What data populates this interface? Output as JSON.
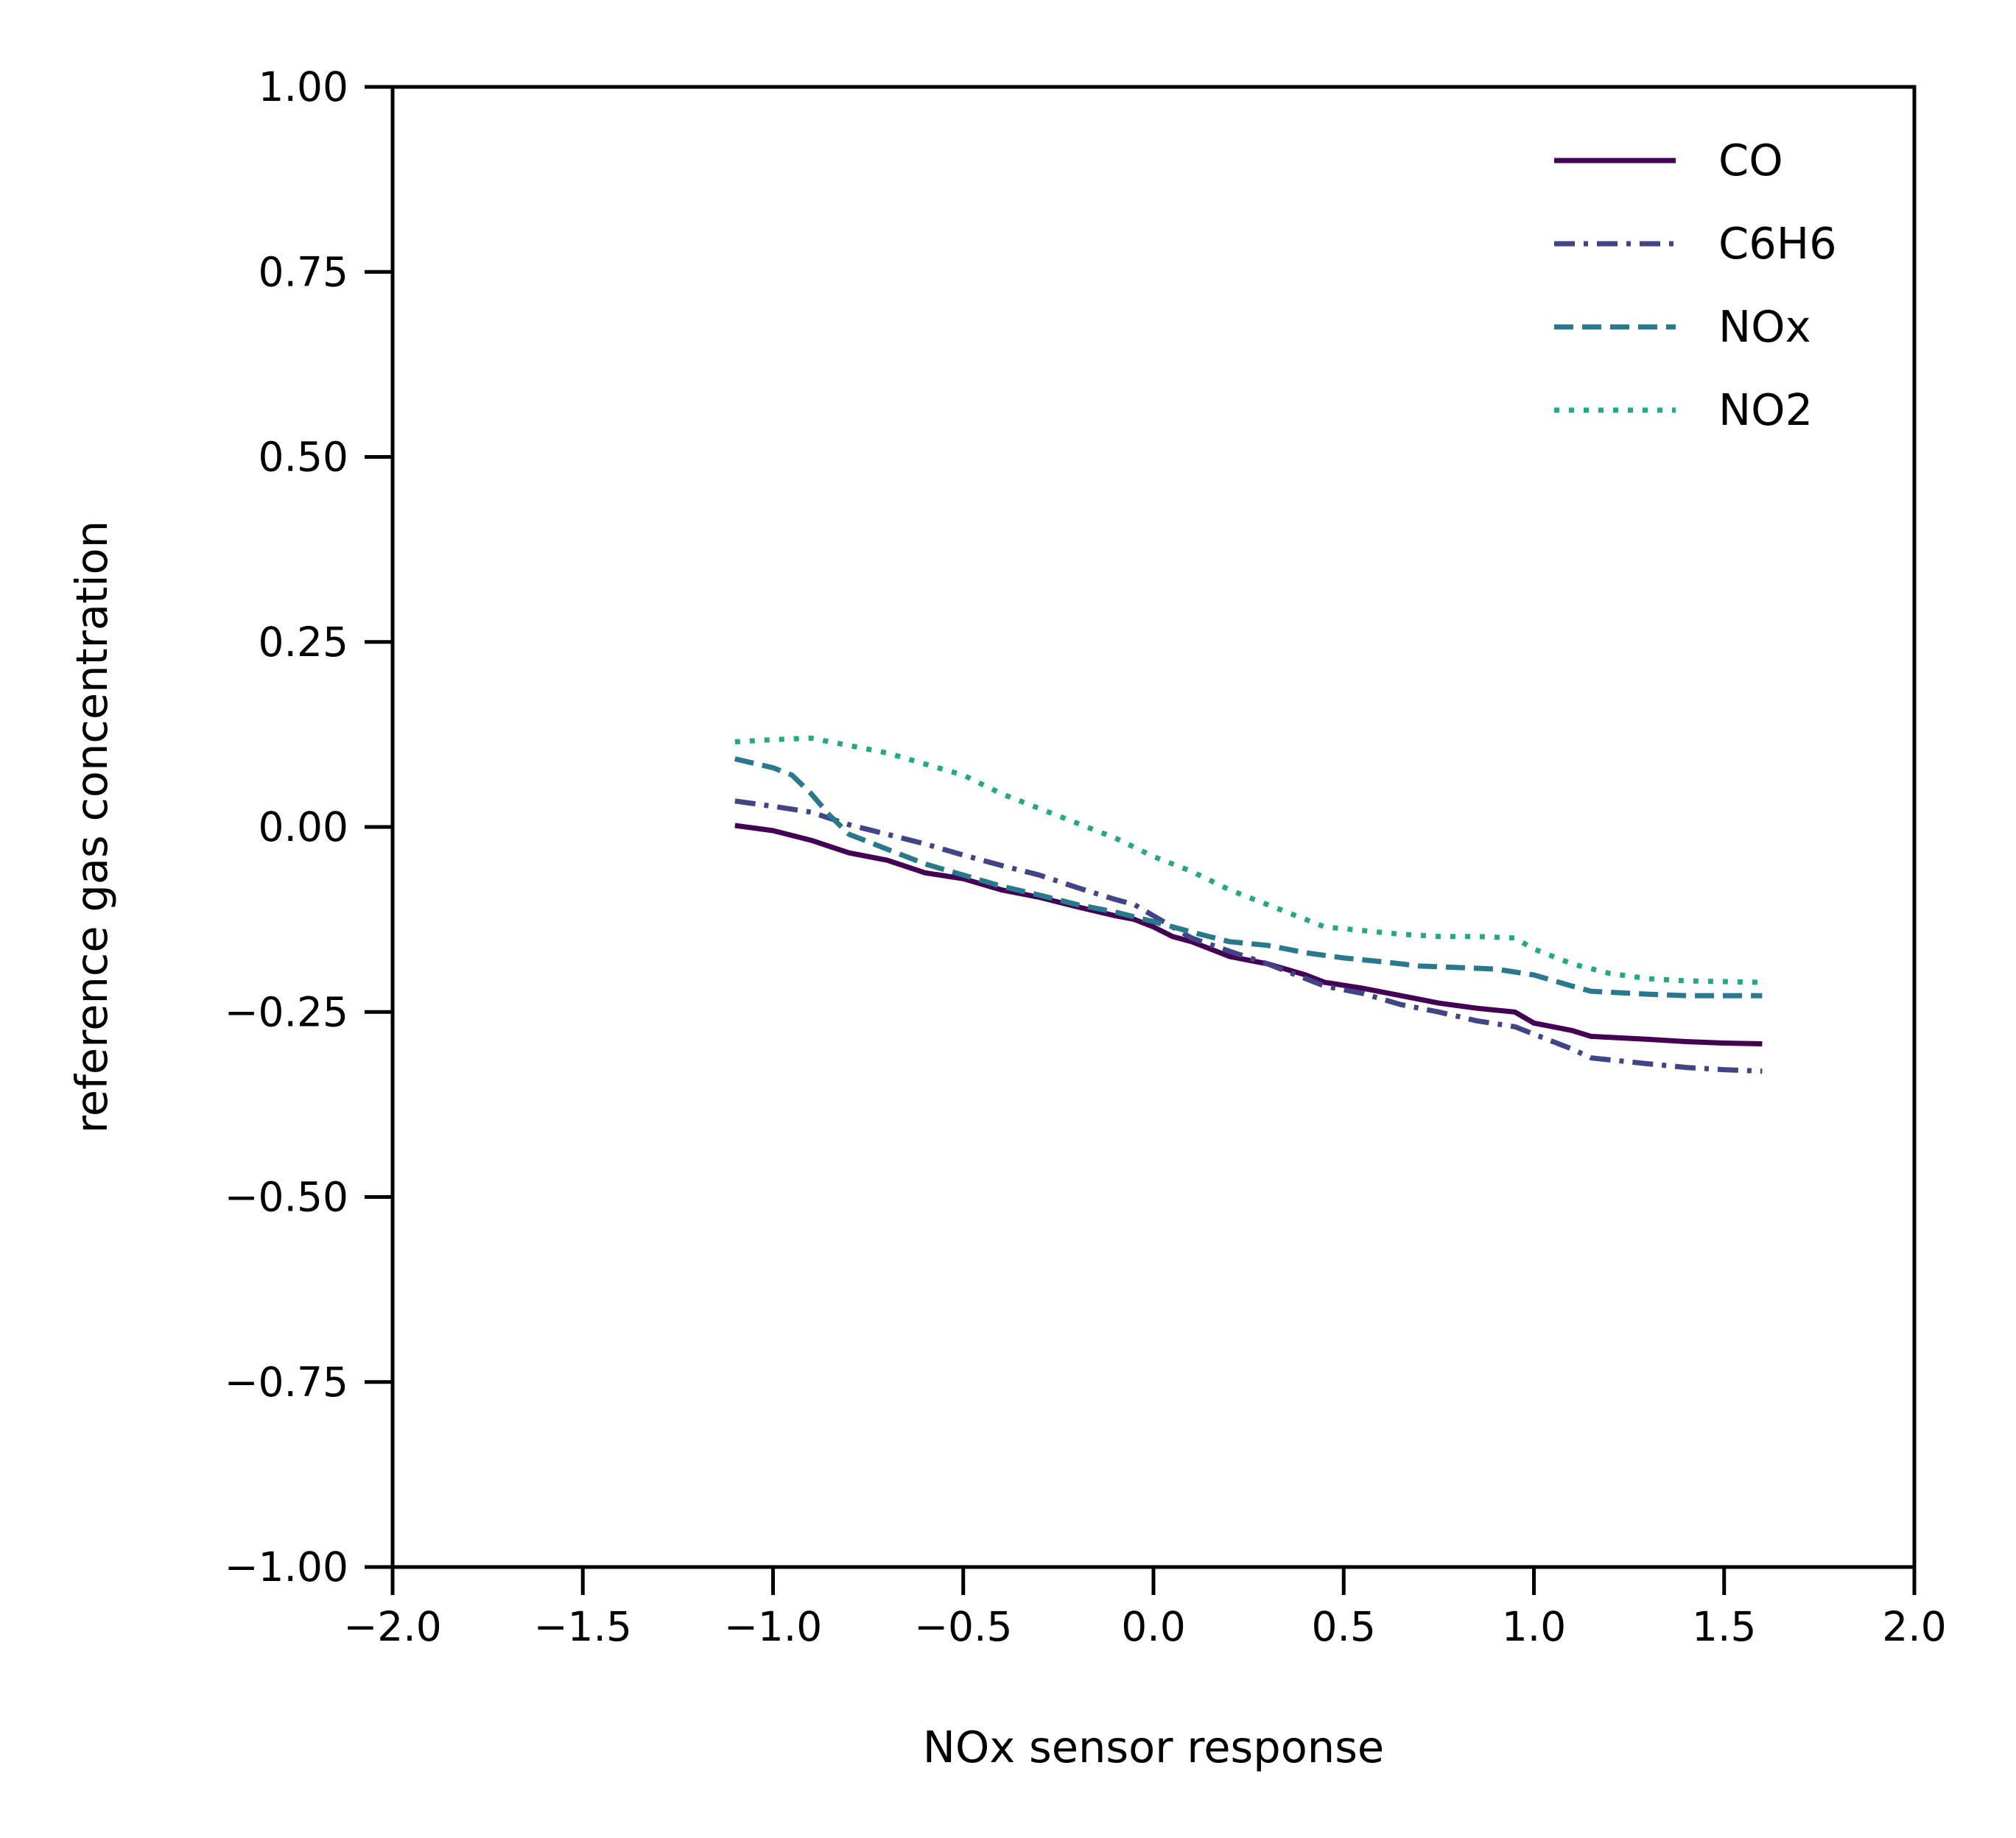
{
  "chart_data": {
    "type": "line",
    "title": "",
    "xlabel": "NOx sensor response",
    "ylabel": "reference gas concentration",
    "xlim": [
      -2.0,
      2.0
    ],
    "ylim": [
      -1.0,
      1.0
    ],
    "xticks": [
      "−2.0",
      "−1.5",
      "−1.0",
      "−0.5",
      "0.0",
      "0.5",
      "1.0",
      "1.5",
      "2.0"
    ],
    "yticks": [
      "1.00",
      "0.75",
      "0.50",
      "0.25",
      "0.00",
      "−0.25",
      "−0.50",
      "−0.75",
      "−1.00"
    ],
    "grid": false,
    "legend_position": "top-right",
    "series": [
      {
        "name": "CO",
        "color": "#440154",
        "dash": "solid",
        "points": [
          [
            -1.1,
            0.002
          ],
          [
            -1.0,
            -0.005
          ],
          [
            -0.9,
            -0.018
          ],
          [
            -0.8,
            -0.035
          ],
          [
            -0.7,
            -0.045
          ],
          [
            -0.6,
            -0.062
          ],
          [
            -0.5,
            -0.07
          ],
          [
            -0.4,
            -0.085
          ],
          [
            -0.3,
            -0.095
          ],
          [
            -0.2,
            -0.108
          ],
          [
            -0.1,
            -0.12
          ],
          [
            -0.05,
            -0.125
          ],
          [
            0.0,
            -0.135
          ],
          [
            0.05,
            -0.148
          ],
          [
            0.1,
            -0.155
          ],
          [
            0.2,
            -0.175
          ],
          [
            0.3,
            -0.185
          ],
          [
            0.4,
            -0.2
          ],
          [
            0.45,
            -0.21
          ],
          [
            0.55,
            -0.218
          ],
          [
            0.65,
            -0.228
          ],
          [
            0.75,
            -0.238
          ],
          [
            0.85,
            -0.245
          ],
          [
            0.95,
            -0.25
          ],
          [
            1.0,
            -0.265
          ],
          [
            1.1,
            -0.275
          ],
          [
            1.15,
            -0.283
          ],
          [
            1.3,
            -0.287
          ],
          [
            1.4,
            -0.29
          ],
          [
            1.5,
            -0.292
          ],
          [
            1.6,
            -0.293
          ]
        ]
      },
      {
        "name": "C6H6",
        "color": "#414487",
        "dash": "dashdot",
        "points": [
          [
            -1.1,
            0.035
          ],
          [
            -1.0,
            0.028
          ],
          [
            -0.9,
            0.02
          ],
          [
            -0.8,
            0.003
          ],
          [
            -0.7,
            -0.01
          ],
          [
            -0.6,
            -0.023
          ],
          [
            -0.5,
            -0.038
          ],
          [
            -0.4,
            -0.052
          ],
          [
            -0.3,
            -0.065
          ],
          [
            -0.2,
            -0.082
          ],
          [
            -0.1,
            -0.098
          ],
          [
            -0.05,
            -0.105
          ],
          [
            0.0,
            -0.12
          ],
          [
            0.05,
            -0.135
          ],
          [
            0.1,
            -0.15
          ],
          [
            0.2,
            -0.168
          ],
          [
            0.3,
            -0.185
          ],
          [
            0.4,
            -0.205
          ],
          [
            0.45,
            -0.215
          ],
          [
            0.55,
            -0.225
          ],
          [
            0.65,
            -0.24
          ],
          [
            0.75,
            -0.25
          ],
          [
            0.85,
            -0.262
          ],
          [
            0.95,
            -0.27
          ],
          [
            1.0,
            -0.28
          ],
          [
            1.1,
            -0.3
          ],
          [
            1.15,
            -0.312
          ],
          [
            1.3,
            -0.32
          ],
          [
            1.4,
            -0.325
          ],
          [
            1.5,
            -0.328
          ],
          [
            1.6,
            -0.33
          ]
        ]
      },
      {
        "name": "NOx",
        "color": "#2a788e",
        "dash": "dashed",
        "points": [
          [
            -1.1,
            0.092
          ],
          [
            -1.0,
            0.08
          ],
          [
            -0.95,
            0.07
          ],
          [
            -0.9,
            0.045
          ],
          [
            -0.85,
            0.015
          ],
          [
            -0.8,
            -0.01
          ],
          [
            -0.7,
            -0.03
          ],
          [
            -0.6,
            -0.05
          ],
          [
            -0.5,
            -0.065
          ],
          [
            -0.4,
            -0.08
          ],
          [
            -0.3,
            -0.092
          ],
          [
            -0.2,
            -0.105
          ],
          [
            -0.1,
            -0.115
          ],
          [
            0.0,
            -0.128
          ],
          [
            0.1,
            -0.142
          ],
          [
            0.2,
            -0.155
          ],
          [
            0.3,
            -0.16
          ],
          [
            0.4,
            -0.17
          ],
          [
            0.5,
            -0.177
          ],
          [
            0.6,
            -0.182
          ],
          [
            0.7,
            -0.188
          ],
          [
            0.8,
            -0.19
          ],
          [
            0.9,
            -0.192
          ],
          [
            1.0,
            -0.2
          ],
          [
            1.1,
            -0.215
          ],
          [
            1.15,
            -0.222
          ],
          [
            1.3,
            -0.226
          ],
          [
            1.4,
            -0.228
          ],
          [
            1.6,
            -0.228
          ]
        ]
      },
      {
        "name": "NO2",
        "color": "#22a884",
        "dash": "dotted",
        "points": [
          [
            -1.1,
            0.115
          ],
          [
            -1.0,
            0.118
          ],
          [
            -0.9,
            0.12
          ],
          [
            -0.8,
            0.11
          ],
          [
            -0.7,
            0.1
          ],
          [
            -0.6,
            0.085
          ],
          [
            -0.5,
            0.07
          ],
          [
            -0.4,
            0.045
          ],
          [
            -0.3,
            0.025
          ],
          [
            -0.2,
            0.005
          ],
          [
            -0.1,
            -0.015
          ],
          [
            0.0,
            -0.04
          ],
          [
            0.1,
            -0.06
          ],
          [
            0.2,
            -0.085
          ],
          [
            0.3,
            -0.105
          ],
          [
            0.4,
            -0.125
          ],
          [
            0.45,
            -0.135
          ],
          [
            0.55,
            -0.14
          ],
          [
            0.65,
            -0.145
          ],
          [
            0.75,
            -0.148
          ],
          [
            0.85,
            -0.148
          ],
          [
            0.95,
            -0.15
          ],
          [
            1.0,
            -0.165
          ],
          [
            1.1,
            -0.185
          ],
          [
            1.2,
            -0.198
          ],
          [
            1.3,
            -0.205
          ],
          [
            1.4,
            -0.208
          ],
          [
            1.6,
            -0.21
          ]
        ]
      }
    ]
  }
}
